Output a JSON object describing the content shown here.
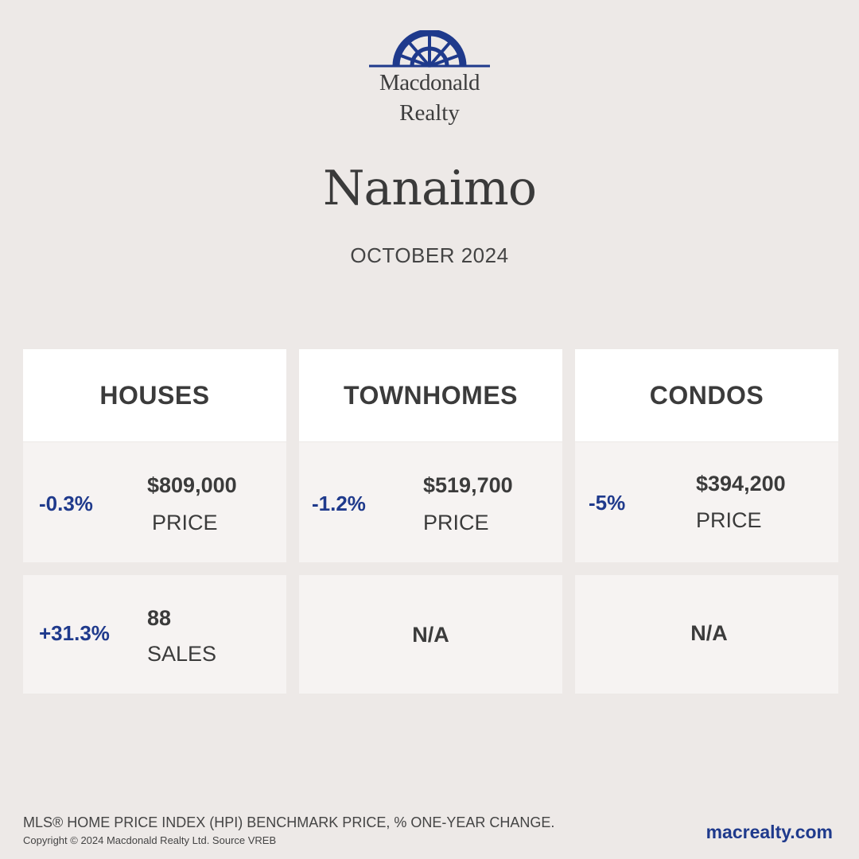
{
  "brand": {
    "name_line1": "Macdonald",
    "name_line2": "Realty",
    "logo_icon": "sunburst-arch-icon",
    "accent_color": "#1f3a8c"
  },
  "city": "Nanaimo",
  "period": "OCTOBER 2024",
  "columns": [
    {
      "title": "HOUSES",
      "price": {
        "change": "-0.3%",
        "value": "$809,000",
        "label": "PRICE"
      },
      "sales": {
        "change": "+31.3%",
        "value": "88",
        "label": "SALES"
      }
    },
    {
      "title": "TOWNHOMES",
      "price": {
        "change": "-1.2%",
        "value": "$519,700",
        "label": "PRICE"
      },
      "sales": {
        "na": "N/A"
      }
    },
    {
      "title": "CONDOS",
      "price": {
        "change": "-5%",
        "value": "$394,200",
        "label": "PRICE"
      },
      "sales": {
        "na": "N/A"
      }
    }
  ],
  "footer": {
    "note": "MLS® HOME PRICE INDEX (HPI) BENCHMARK PRICE, % ONE-YEAR CHANGE.",
    "copyright": "Copyright © 2024 Macdonald Realty Ltd. Source VREB",
    "website": "macrealty.com"
  }
}
